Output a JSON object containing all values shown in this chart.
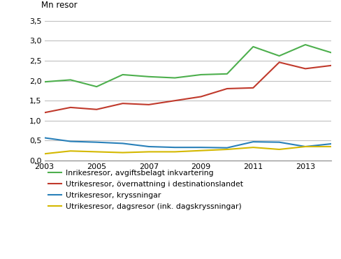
{
  "years": [
    2003,
    2004,
    2005,
    2006,
    2007,
    2008,
    2009,
    2010,
    2011,
    2012,
    2013,
    2014
  ],
  "inrikesresor": [
    1.97,
    2.02,
    1.85,
    2.15,
    2.1,
    2.07,
    2.15,
    2.17,
    2.85,
    2.62,
    2.9,
    2.7
  ],
  "utrikesresor_overn": [
    1.2,
    1.33,
    1.28,
    1.43,
    1.4,
    1.5,
    1.6,
    1.8,
    1.82,
    2.46,
    2.3,
    2.38
  ],
  "utrikesresor_kryssn": [
    0.57,
    0.48,
    0.46,
    0.43,
    0.35,
    0.33,
    0.33,
    0.32,
    0.47,
    0.46,
    0.35,
    0.42
  ],
  "utrikesresor_dagsresor": [
    0.17,
    0.24,
    0.22,
    0.2,
    0.22,
    0.22,
    0.25,
    0.28,
    0.33,
    0.28,
    0.35,
    0.35
  ],
  "color_inrikes": "#4daf4d",
  "color_overn": "#c0392b",
  "color_kryssn": "#2980b9",
  "color_dagsresor": "#d4b800",
  "ylabel": "Mn resor",
  "ylim_min": 0.0,
  "ylim_max": 3.5,
  "yticks": [
    0.0,
    0.5,
    1.0,
    1.5,
    2.0,
    2.5,
    3.0,
    3.5
  ],
  "xticks": [
    2003,
    2005,
    2007,
    2009,
    2011,
    2013
  ],
  "xlim_min": 2003,
  "xlim_max": 2014,
  "legend_inrikes": "Inrikesresor, avgiftsbelagt inkvartering",
  "legend_overn": "Utrikesresor, övernattning i destinationslandet",
  "legend_kryssn": "Utrikesresor, kryssningar",
  "legend_dagsresor": "Utrikesresor, dagsresor (ink. dagskryssningar)",
  "bg_color": "#ffffff",
  "grid_color": "#c0c0c0",
  "linewidth": 1.5,
  "fontsize_ticks": 8,
  "fontsize_ylabel": 8.5,
  "fontsize_legend": 7.8
}
